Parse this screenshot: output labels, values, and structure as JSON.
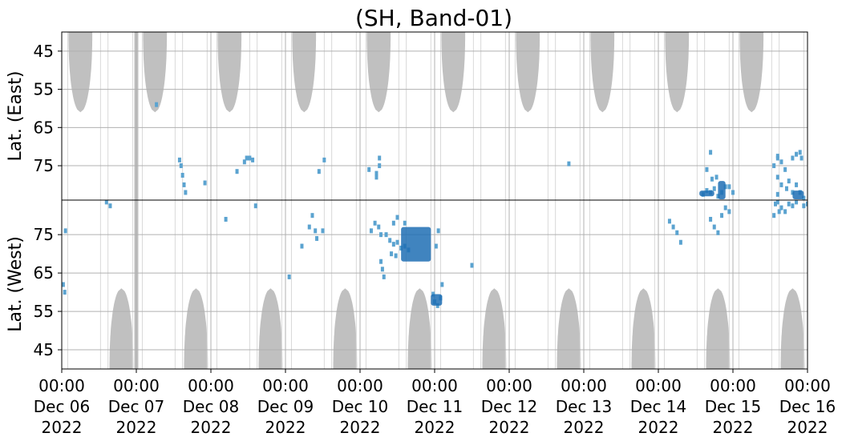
{
  "chart_data": {
    "type": "heatmap",
    "title": "(SH, Band-01)",
    "upper_panel": {
      "ylabel": "Lat. (East)",
      "yticks": [
        45,
        55,
        65,
        75
      ],
      "ylim": [
        84,
        40
      ]
    },
    "lower_panel": {
      "ylabel": "Lat. (West)",
      "yticks": [
        75,
        65,
        55,
        45
      ],
      "ylim": [
        84,
        40
      ]
    },
    "x_ticks": [
      {
        "time": "00:00",
        "date": "Dec 06",
        "year": "2022"
      },
      {
        "time": "00:00",
        "date": "Dec 07",
        "year": "2022"
      },
      {
        "time": "00:00",
        "date": "Dec 08",
        "year": "2022"
      },
      {
        "time": "00:00",
        "date": "Dec 09",
        "year": "2022"
      },
      {
        "time": "00:00",
        "date": "Dec 10",
        "year": "2022"
      },
      {
        "time": "00:00",
        "date": "Dec 11",
        "year": "2022"
      },
      {
        "time": "00:00",
        "date": "Dec 12",
        "year": "2022"
      },
      {
        "time": "00:00",
        "date": "Dec 13",
        "year": "2022"
      },
      {
        "time": "00:00",
        "date": "Dec 14",
        "year": "2022"
      },
      {
        "time": "00:00",
        "date": "Dec 15",
        "year": "2022"
      },
      {
        "time": "00:00",
        "date": "Dec 16",
        "year": "2022"
      }
    ],
    "xlim": [
      "2022-12-06 00:00",
      "2022-12-16 00:00"
    ],
    "grid": true,
    "colors": {
      "daylight": "#c0c0c0",
      "detection_light": "#5ba3d0",
      "detection_dark": "#1f6fb4",
      "grid": "#b0b0b0"
    },
    "daylight_regions": {
      "east_centers_day": [
        0.25,
        1.25,
        2.25,
        3.25,
        4.25,
        5.25,
        6.25,
        7.25,
        8.25,
        9.25
      ],
      "west_centers_day": [
        0.8,
        1.8,
        2.8,
        3.8,
        4.8,
        5.8,
        6.8,
        7.8,
        8.8,
        9.8
      ],
      "half_width_day_at_edge": 0.16,
      "max_latitude_reached": 61
    },
    "data_gap_days": [
      1.0
    ],
    "detections_east": [
      {
        "day": 1.58,
        "lat": 73.5
      },
      {
        "day": 1.6,
        "lat": 75
      },
      {
        "day": 1.62,
        "lat": 77.5
      },
      {
        "day": 1.64,
        "lat": 80
      },
      {
        "day": 1.66,
        "lat": 82
      },
      {
        "day": 1.92,
        "lat": 79.5
      },
      {
        "day": 2.35,
        "lat": 76.5
      },
      {
        "day": 2.45,
        "lat": 74
      },
      {
        "day": 2.48,
        "lat": 73
      },
      {
        "day": 2.52,
        "lat": 73
      },
      {
        "day": 2.56,
        "lat": 73.5
      },
      {
        "day": 3.45,
        "lat": 76.5
      },
      {
        "day": 3.52,
        "lat": 73.5
      },
      {
        "day": 4.12,
        "lat": 76
      },
      {
        "day": 4.22,
        "lat": 77
      },
      {
        "day": 4.26,
        "lat": 73
      },
      {
        "day": 4.26,
        "lat": 75
      },
      {
        "day": 4.22,
        "lat": 78
      },
      {
        "day": 6.8,
        "lat": 74.5
      },
      {
        "day": 8.6,
        "lat": 82.5
      },
      {
        "day": 8.65,
        "lat": 81.5
      },
      {
        "day": 8.7,
        "lat": 82
      },
      {
        "day": 8.75,
        "lat": 81
      },
      {
        "day": 8.8,
        "lat": 83
      },
      {
        "day": 8.85,
        "lat": 82
      },
      {
        "day": 8.9,
        "lat": 80.5
      },
      {
        "day": 8.95,
        "lat": 80.5
      },
      {
        "day": 9.0,
        "lat": 82
      },
      {
        "day": 8.65,
        "lat": 76
      },
      {
        "day": 8.72,
        "lat": 78.5
      },
      {
        "day": 8.78,
        "lat": 78
      },
      {
        "day": 9.55,
        "lat": 75
      },
      {
        "day": 9.6,
        "lat": 73
      },
      {
        "day": 9.65,
        "lat": 74
      },
      {
        "day": 9.7,
        "lat": 76
      },
      {
        "day": 9.75,
        "lat": 79
      },
      {
        "day": 9.8,
        "lat": 73
      },
      {
        "day": 9.85,
        "lat": 72
      },
      {
        "day": 9.9,
        "lat": 71.5
      },
      {
        "day": 9.92,
        "lat": 73
      },
      {
        "day": 9.6,
        "lat": 78
      },
      {
        "day": 9.65,
        "lat": 80
      },
      {
        "day": 9.72,
        "lat": 81
      },
      {
        "day": 9.8,
        "lat": 82
      },
      {
        "day": 9.85,
        "lat": 80
      },
      {
        "day": 9.9,
        "lat": 82
      },
      {
        "day": 9.95,
        "lat": 83.5
      },
      {
        "day": 9.6,
        "lat": 82.5
      },
      {
        "day": 1.27,
        "lat": 59
      },
      {
        "day": 8.7,
        "lat": 71.5
      },
      {
        "day": 9.6,
        "lat": 72.5
      }
    ],
    "detections_west": [
      {
        "day": 0.05,
        "lat": 76
      },
      {
        "day": 0.6,
        "lat": 83.5
      },
      {
        "day": 0.65,
        "lat": 82.5
      },
      {
        "day": 2.2,
        "lat": 79
      },
      {
        "day": 2.6,
        "lat": 82.5
      },
      {
        "day": 3.32,
        "lat": 77
      },
      {
        "day": 3.36,
        "lat": 80
      },
      {
        "day": 3.4,
        "lat": 76
      },
      {
        "day": 3.42,
        "lat": 74
      },
      {
        "day": 3.5,
        "lat": 76
      },
      {
        "day": 3.22,
        "lat": 72
      },
      {
        "day": 3.05,
        "lat": 64
      },
      {
        "day": 4.15,
        "lat": 76
      },
      {
        "day": 4.2,
        "lat": 78
      },
      {
        "day": 4.25,
        "lat": 77
      },
      {
        "day": 4.28,
        "lat": 75
      },
      {
        "day": 4.35,
        "lat": 75
      },
      {
        "day": 4.4,
        "lat": 73.5
      },
      {
        "day": 4.45,
        "lat": 72.5
      },
      {
        "day": 4.5,
        "lat": 73
      },
      {
        "day": 4.55,
        "lat": 71.5
      },
      {
        "day": 4.6,
        "lat": 72
      },
      {
        "day": 4.65,
        "lat": 71
      },
      {
        "day": 4.42,
        "lat": 70
      },
      {
        "day": 4.48,
        "lat": 69.5
      },
      {
        "day": 4.45,
        "lat": 78
      },
      {
        "day": 4.5,
        "lat": 79.5
      },
      {
        "day": 4.6,
        "lat": 78
      },
      {
        "day": 4.3,
        "lat": 66
      },
      {
        "day": 4.32,
        "lat": 64
      },
      {
        "day": 4.28,
        "lat": 68
      },
      {
        "day": 5.02,
        "lat": 72
      },
      {
        "day": 5.05,
        "lat": 76
      },
      {
        "day": 5.08,
        "lat": 58.5
      },
      {
        "day": 5.0,
        "lat": 57.5
      },
      {
        "day": 5.04,
        "lat": 56.5
      },
      {
        "day": 5.1,
        "lat": 62
      },
      {
        "day": 4.98,
        "lat": 59.5
      },
      {
        "day": 5.5,
        "lat": 67
      },
      {
        "day": 8.15,
        "lat": 78.5
      },
      {
        "day": 8.2,
        "lat": 77
      },
      {
        "day": 8.25,
        "lat": 75.5
      },
      {
        "day": 8.3,
        "lat": 73
      },
      {
        "day": 8.7,
        "lat": 79
      },
      {
        "day": 8.75,
        "lat": 77
      },
      {
        "day": 8.8,
        "lat": 75.5
      },
      {
        "day": 8.85,
        "lat": 80
      },
      {
        "day": 8.9,
        "lat": 82
      },
      {
        "day": 8.95,
        "lat": 81
      },
      {
        "day": 9.55,
        "lat": 80
      },
      {
        "day": 9.6,
        "lat": 83.5
      },
      {
        "day": 9.65,
        "lat": 82
      },
      {
        "day": 9.7,
        "lat": 81
      },
      {
        "day": 9.75,
        "lat": 83
      },
      {
        "day": 9.8,
        "lat": 82.5
      },
      {
        "day": 9.85,
        "lat": 83.5
      },
      {
        "day": 9.95,
        "lat": 82.5
      },
      {
        "day": 10.0,
        "lat": 83
      },
      {
        "day": 9.57,
        "lat": 83
      },
      {
        "day": 9.62,
        "lat": 81
      },
      {
        "day": 0.02,
        "lat": 62
      },
      {
        "day": 0.04,
        "lat": 60
      }
    ],
    "dense_clusters_west": [
      {
        "day_from": 4.55,
        "day_to": 4.95,
        "lat_from": 77,
        "lat_to": 68
      },
      {
        "day_from": 4.95,
        "day_to": 5.1,
        "lat_from": 59.5,
        "lat_to": 56.5
      }
    ],
    "dense_clusters_east": [
      {
        "day_from": 8.55,
        "day_to": 8.75,
        "lat_from": 81.5,
        "lat_to": 83
      },
      {
        "day_from": 8.8,
        "day_to": 8.9,
        "lat_from": 79,
        "lat_to": 83.8
      },
      {
        "day_from": 9.8,
        "day_to": 9.95,
        "lat_from": 81.5,
        "lat_to": 83.8
      }
    ]
  }
}
